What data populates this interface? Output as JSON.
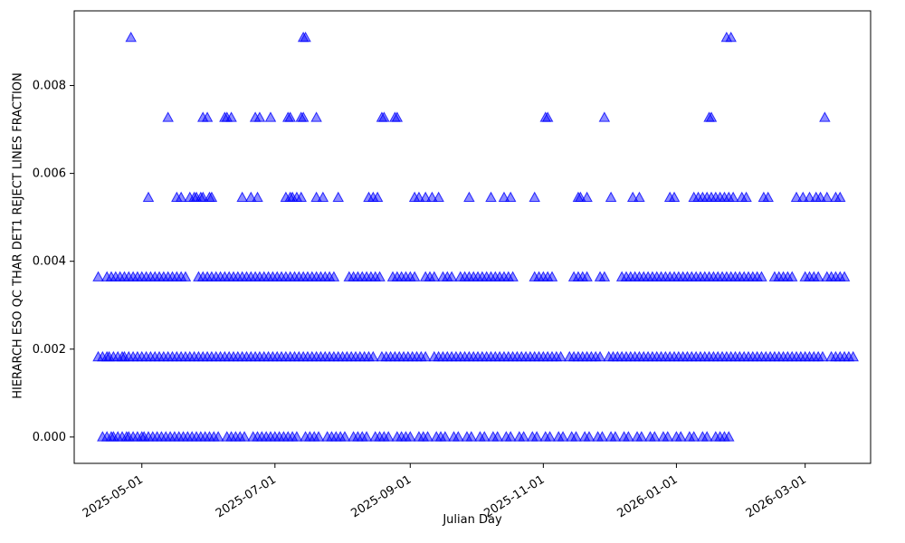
{
  "chart_data": {
    "type": "scatter",
    "title": "",
    "xlabel": "Julian Day",
    "ylabel": "HIERARCH ESO QC THAR DET1 REJECT LINES FRACTION",
    "marker": "triangle-up",
    "marker_color": "#0000ff",
    "marker_alpha": 0.45,
    "grid": false,
    "legend": "none",
    "x_value_meaning": "days since 2025-04-01",
    "x_range": [
      -1,
      364
    ],
    "y_range": [
      -0.0006,
      0.0097
    ],
    "x_ticks": [
      {
        "label": "2025-05-01",
        "value": 30
      },
      {
        "label": "2025-07-01",
        "value": 91
      },
      {
        "label": "2025-09-01",
        "value": 153
      },
      {
        "label": "2025-11-01",
        "value": 214
      },
      {
        "label": "2026-01-01",
        "value": 275
      },
      {
        "label": "2026-03-01",
        "value": 334
      }
    ],
    "y_ticks": [
      {
        "label": "0.000",
        "value": 0.0
      },
      {
        "label": "0.002",
        "value": 0.002
      },
      {
        "label": "0.004",
        "value": 0.004
      },
      {
        "label": "0.006",
        "value": 0.006
      },
      {
        "label": "0.008",
        "value": 0.008
      }
    ],
    "levels": [
      {
        "y": 0.0,
        "x": [
          12,
          14,
          16,
          17,
          19,
          21,
          23,
          24,
          26,
          28,
          30,
          31,
          33,
          35,
          37,
          39,
          41,
          43,
          45,
          47,
          49,
          51,
          53,
          55,
          57,
          59,
          61,
          63,
          65,
          69,
          71,
          73,
          75,
          77,
          81,
          83,
          85,
          87,
          89,
          91,
          93,
          95,
          97,
          99,
          101,
          105,
          107,
          109,
          111,
          115,
          117,
          119,
          121,
          123,
          127,
          129,
          131,
          133,
          137,
          139,
          141,
          143,
          147,
          149,
          151,
          153,
          157,
          159,
          161,
          165,
          167,
          169,
          173,
          175,
          179,
          181,
          185,
          187,
          191,
          193,
          197,
          199,
          203,
          205,
          209,
          211,
          215,
          217,
          221,
          223,
          227,
          229,
          233,
          235,
          239,
          241,
          245,
          247,
          251,
          253,
          257,
          259,
          263,
          265,
          269,
          271,
          275,
          277,
          281,
          283,
          287,
          289,
          293,
          295,
          297,
          299
        ]
      },
      {
        "y": 0.00182,
        "x": [
          10,
          12,
          14,
          15,
          17,
          19,
          21,
          22,
          24,
          26,
          28,
          30,
          32,
          34,
          36,
          38,
          40,
          42,
          44,
          46,
          48,
          50,
          52,
          54,
          56,
          58,
          60,
          62,
          64,
          66,
          68,
          70,
          72,
          74,
          76,
          78,
          80,
          82,
          84,
          86,
          88,
          90,
          92,
          94,
          96,
          98,
          100,
          102,
          104,
          106,
          108,
          110,
          112,
          114,
          116,
          118,
          120,
          122,
          124,
          126,
          128,
          130,
          132,
          134,
          136,
          140,
          142,
          144,
          146,
          148,
          150,
          152,
          154,
          156,
          158,
          160,
          164,
          166,
          168,
          170,
          172,
          174,
          176,
          178,
          180,
          182,
          184,
          186,
          188,
          190,
          192,
          194,
          196,
          198,
          200,
          202,
          204,
          206,
          208,
          210,
          212,
          214,
          216,
          218,
          220,
          222,
          226,
          228,
          230,
          232,
          234,
          236,
          238,
          240,
          244,
          246,
          248,
          250,
          252,
          254,
          256,
          258,
          260,
          262,
          264,
          266,
          268,
          270,
          272,
          274,
          276,
          278,
          280,
          282,
          284,
          286,
          288,
          290,
          292,
          294,
          296,
          298,
          300,
          302,
          304,
          306,
          308,
          310,
          312,
          314,
          316,
          318,
          320,
          322,
          324,
          326,
          328,
          330,
          332,
          334,
          336,
          338,
          340,
          342,
          346,
          348,
          350,
          352,
          354,
          356
        ]
      },
      {
        "y": 0.00364,
        "x": [
          10,
          14,
          16,
          18,
          20,
          22,
          24,
          26,
          28,
          30,
          32,
          34,
          36,
          38,
          40,
          42,
          44,
          46,
          48,
          50,
          56,
          58,
          60,
          62,
          64,
          66,
          68,
          70,
          72,
          74,
          76,
          78,
          80,
          82,
          84,
          86,
          88,
          90,
          92,
          94,
          96,
          98,
          100,
          102,
          104,
          106,
          108,
          110,
          112,
          114,
          116,
          118,
          125,
          127,
          129,
          131,
          133,
          135,
          137,
          139,
          145,
          147,
          149,
          151,
          153,
          155,
          160,
          162,
          164,
          168,
          170,
          172,
          176,
          178,
          180,
          182,
          184,
          186,
          188,
          190,
          192,
          194,
          196,
          198,
          200,
          210,
          212,
          214,
          216,
          218,
          228,
          230,
          232,
          234,
          240,
          242,
          250,
          252,
          254,
          256,
          258,
          260,
          262,
          264,
          266,
          268,
          270,
          272,
          274,
          276,
          278,
          280,
          282,
          284,
          286,
          288,
          290,
          292,
          294,
          296,
          298,
          300,
          302,
          304,
          306,
          308,
          310,
          312,
          314,
          320,
          322,
          324,
          326,
          328,
          334,
          336,
          338,
          340,
          344,
          346,
          348,
          350,
          352
        ]
      },
      {
        "y": 0.00545,
        "x": [
          33,
          46,
          48,
          52,
          54,
          55,
          57,
          58,
          61,
          62,
          76,
          80,
          83,
          96,
          98,
          99,
          101,
          103,
          110,
          113,
          120,
          134,
          136,
          138,
          155,
          157,
          160,
          163,
          166,
          180,
          190,
          196,
          199,
          210,
          230,
          231,
          234,
          245,
          255,
          258,
          272,
          274,
          283,
          285,
          287,
          289,
          291,
          293,
          295,
          297,
          299,
          301,
          305,
          307,
          315,
          317,
          330,
          333,
          336,
          339,
          341,
          344,
          348,
          350
        ]
      },
      {
        "y": 0.00727,
        "x": [
          42,
          58,
          60,
          68,
          69,
          71,
          82,
          84,
          89,
          97,
          98,
          103,
          104,
          110,
          140,
          141,
          146,
          147,
          215,
          216,
          242,
          290,
          291,
          343
        ]
      },
      {
        "y": 0.00909,
        "x": [
          25,
          104,
          105,
          298,
          300
        ]
      }
    ]
  }
}
